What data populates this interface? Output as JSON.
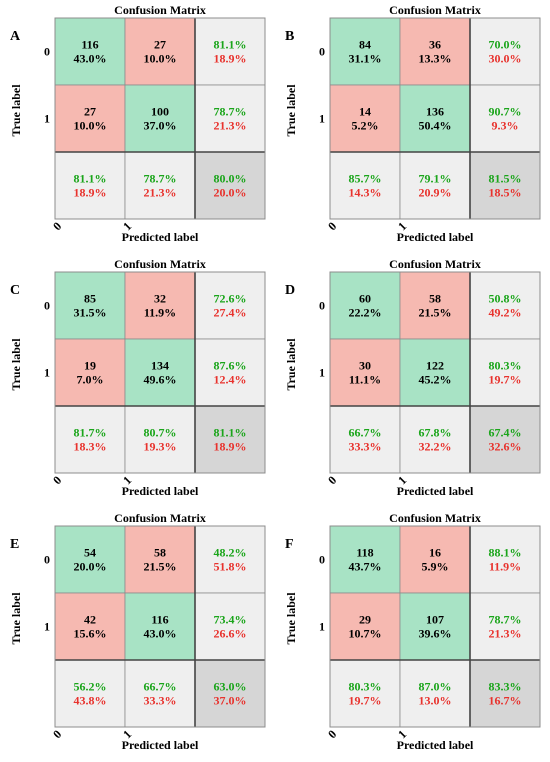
{
  "colors": {
    "correct": "#a8e3c5",
    "incorrect": "#f6b9b1",
    "summary": "#efefef",
    "overall": "#d6d6d6",
    "pct_correct": "#1aa51a",
    "pct_incorrect": "#e8322d",
    "text": "#000000",
    "grid": "#8c8c8c",
    "separator": "#444444"
  },
  "chart_data": [
    {
      "panel": "A",
      "type": "heatmap",
      "title": "Confusion Matrix",
      "xlabel": "Predicted label",
      "ylabel": "True label",
      "classes": [
        "0",
        "1"
      ],
      "counts": [
        [
          116,
          27
        ],
        [
          27,
          100
        ]
      ],
      "cell_pct": [
        [
          "43.0%",
          "10.0%"
        ],
        [
          "10.0%",
          "37.0%"
        ]
      ],
      "row_summary": [
        [
          "81.1%",
          "18.9%"
        ],
        [
          "78.7%",
          "21.3%"
        ]
      ],
      "col_summary": [
        [
          "81.1%",
          "18.9%"
        ],
        [
          "78.7%",
          "21.3%"
        ]
      ],
      "overall": [
        "80.0%",
        "20.0%"
      ]
    },
    {
      "panel": "B",
      "type": "heatmap",
      "title": "Confusion Matrix",
      "xlabel": "Predicted label",
      "ylabel": "True label",
      "classes": [
        "0",
        "1"
      ],
      "counts": [
        [
          84,
          36
        ],
        [
          14,
          136
        ]
      ],
      "cell_pct": [
        [
          "31.1%",
          "13.3%"
        ],
        [
          "5.2%",
          "50.4%"
        ]
      ],
      "row_summary": [
        [
          "70.0%",
          "30.0%"
        ],
        [
          "90.7%",
          "9.3%"
        ]
      ],
      "col_summary": [
        [
          "85.7%",
          "14.3%"
        ],
        [
          "79.1%",
          "20.9%"
        ]
      ],
      "overall": [
        "81.5%",
        "18.5%"
      ]
    },
    {
      "panel": "C",
      "type": "heatmap",
      "title": "Confusion Matrix",
      "xlabel": "Predicted label",
      "ylabel": "True label",
      "classes": [
        "0",
        "1"
      ],
      "counts": [
        [
          85,
          32
        ],
        [
          19,
          134
        ]
      ],
      "cell_pct": [
        [
          "31.5%",
          "11.9%"
        ],
        [
          "7.0%",
          "49.6%"
        ]
      ],
      "row_summary": [
        [
          "72.6%",
          "27.4%"
        ],
        [
          "87.6%",
          "12.4%"
        ]
      ],
      "col_summary": [
        [
          "81.7%",
          "18.3%"
        ],
        [
          "80.7%",
          "19.3%"
        ]
      ],
      "overall": [
        "81.1%",
        "18.9%"
      ]
    },
    {
      "panel": "D",
      "type": "heatmap",
      "title": "Confusion Matrix",
      "xlabel": "Predicted label",
      "ylabel": "True label",
      "classes": [
        "0",
        "1"
      ],
      "counts": [
        [
          60,
          58
        ],
        [
          30,
          122
        ]
      ],
      "cell_pct": [
        [
          "22.2%",
          "21.5%"
        ],
        [
          "11.1%",
          "45.2%"
        ]
      ],
      "row_summary": [
        [
          "50.8%",
          "49.2%"
        ],
        [
          "80.3%",
          "19.7%"
        ]
      ],
      "col_summary": [
        [
          "66.7%",
          "33.3%"
        ],
        [
          "67.8%",
          "32.2%"
        ]
      ],
      "overall": [
        "67.4%",
        "32.6%"
      ]
    },
    {
      "panel": "E",
      "type": "heatmap",
      "title": "Confusion Matrix",
      "xlabel": "Predicted label",
      "ylabel": "True label",
      "classes": [
        "0",
        "1"
      ],
      "counts": [
        [
          54,
          58
        ],
        [
          42,
          116
        ]
      ],
      "cell_pct": [
        [
          "20.0%",
          "21.5%"
        ],
        [
          "15.6%",
          "43.0%"
        ]
      ],
      "row_summary": [
        [
          "48.2%",
          "51.8%"
        ],
        [
          "73.4%",
          "26.6%"
        ]
      ],
      "col_summary": [
        [
          "56.2%",
          "43.8%"
        ],
        [
          "66.7%",
          "33.3%"
        ]
      ],
      "overall": [
        "63.0%",
        "37.0%"
      ]
    },
    {
      "panel": "F",
      "type": "heatmap",
      "title": "Confusion Matrix",
      "xlabel": "Predicted label",
      "ylabel": "True label",
      "classes": [
        "0",
        "1"
      ],
      "counts": [
        [
          118,
          16
        ],
        [
          29,
          107
        ]
      ],
      "cell_pct": [
        [
          "43.7%",
          "5.9%"
        ],
        [
          "10.7%",
          "39.6%"
        ]
      ],
      "row_summary": [
        [
          "88.1%",
          "11.9%"
        ],
        [
          "78.7%",
          "21.3%"
        ]
      ],
      "col_summary": [
        [
          "80.3%",
          "19.7%"
        ],
        [
          "87.0%",
          "13.0%"
        ]
      ],
      "overall": [
        "83.3%",
        "16.7%"
      ]
    }
  ]
}
